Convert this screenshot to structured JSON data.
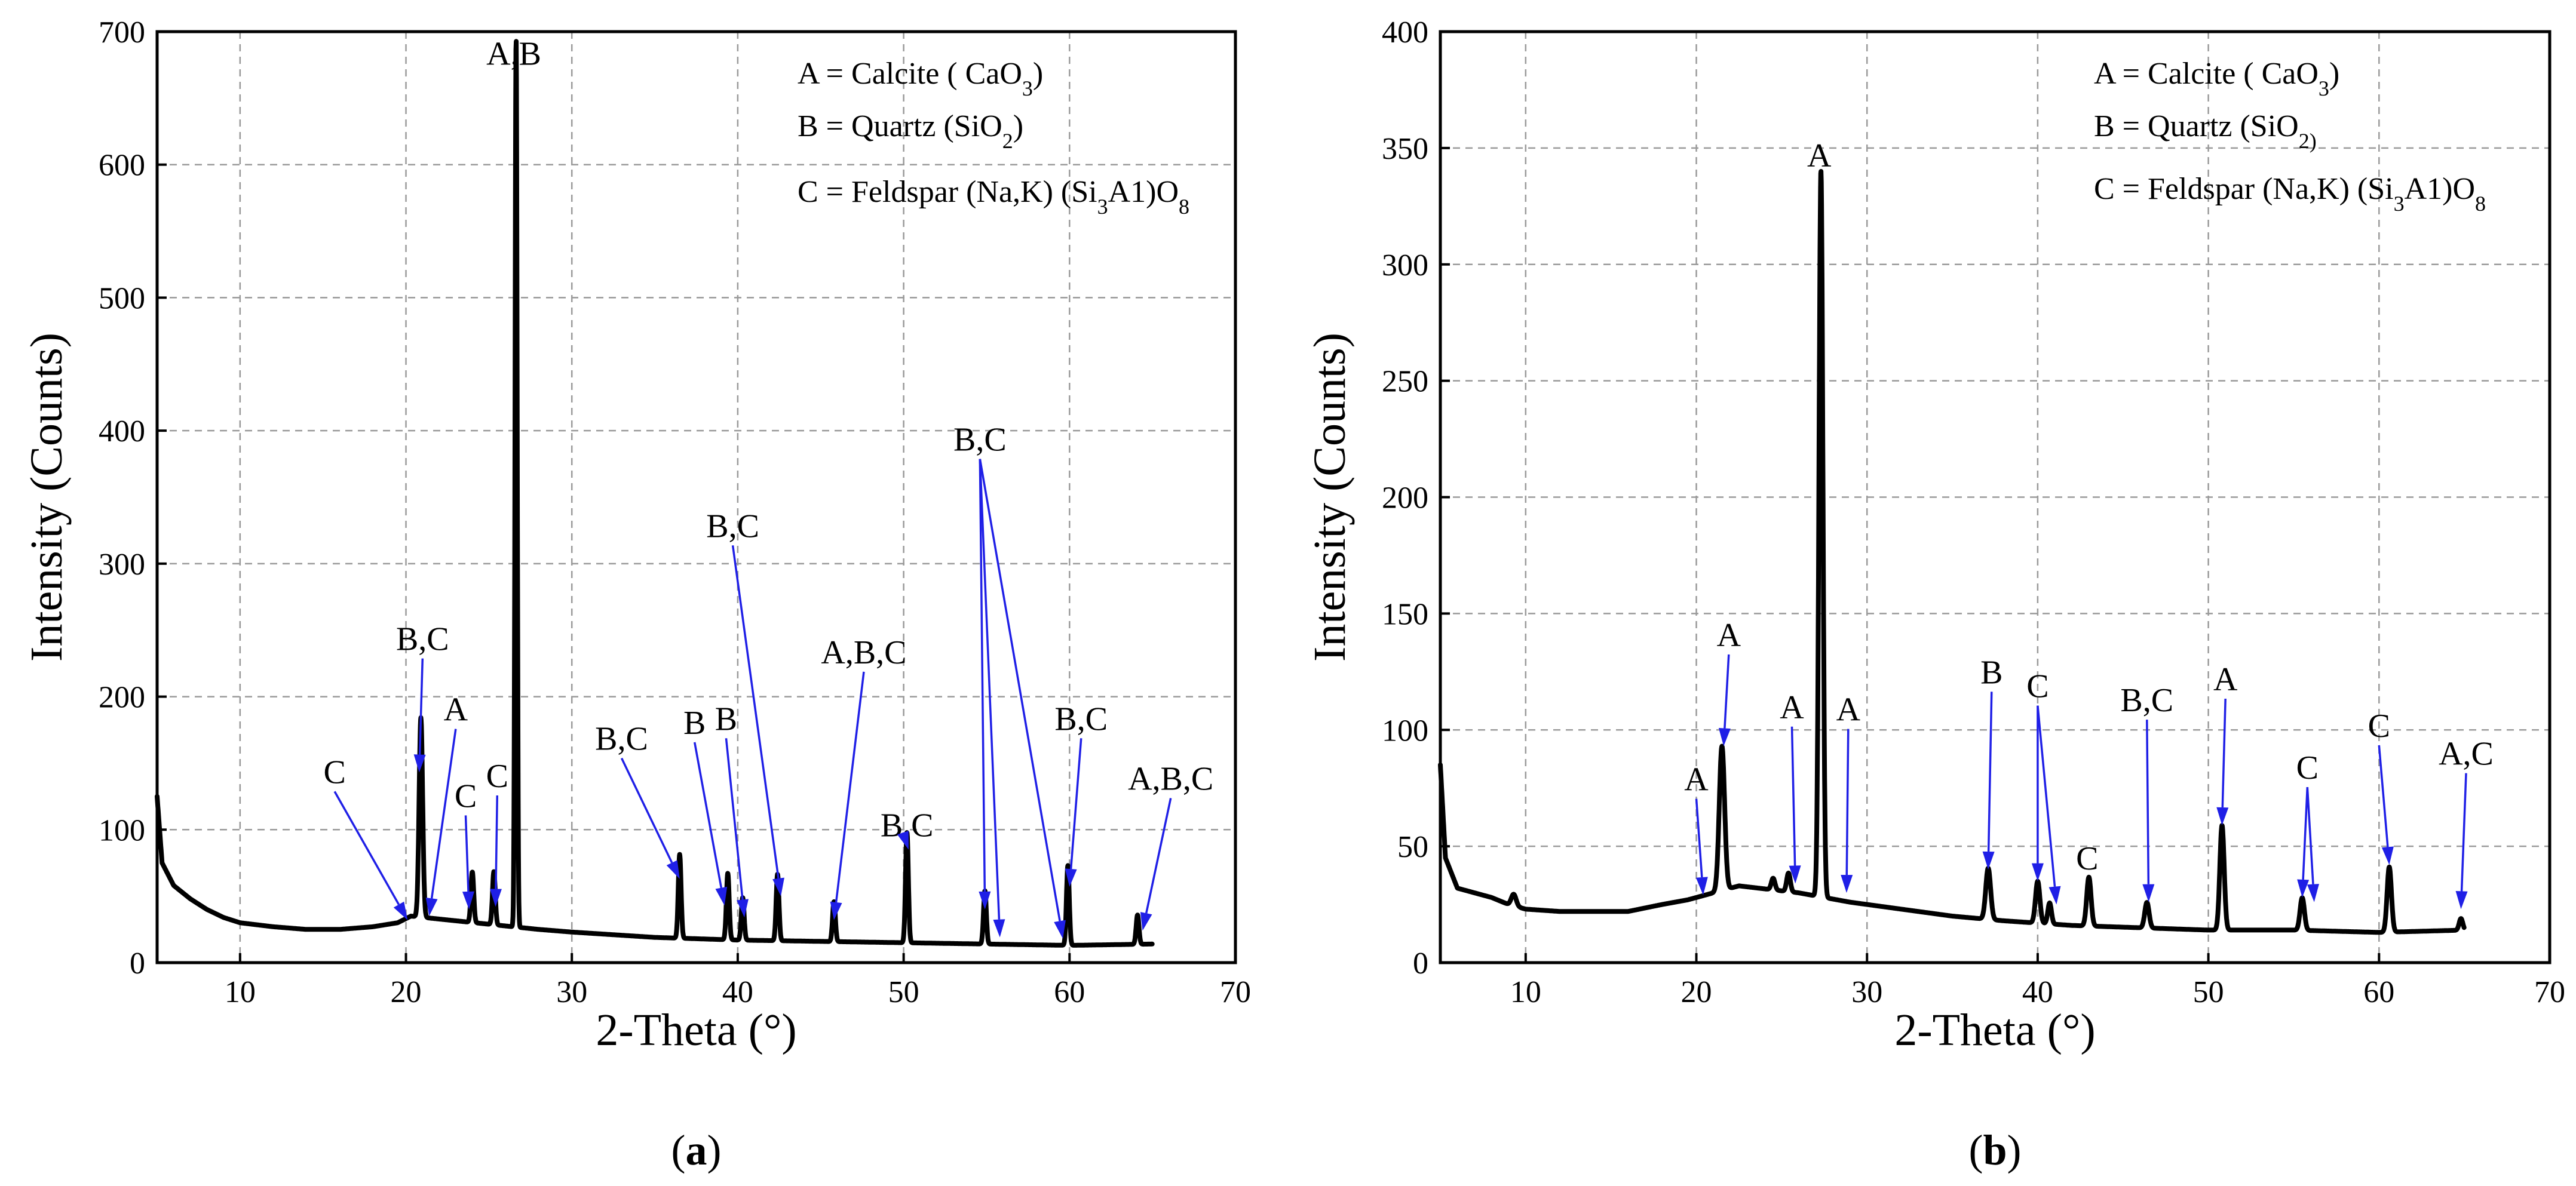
{
  "chart_data": [
    {
      "id": "a",
      "type": "line",
      "panel_label": "a",
      "xlabel": "2-Theta (°)",
      "ylabel": "Intensity (Counts)",
      "xlim": [
        5,
        70
      ],
      "ylim": [
        0,
        700
      ],
      "xticks": [
        10,
        20,
        30,
        40,
        50,
        60,
        70
      ],
      "yticks": [
        0,
        100,
        200,
        300,
        400,
        500,
        600,
        700
      ],
      "grid": true,
      "legend_position": "top-right",
      "legend": [
        {
          "lead": "A = Calcite ( CaO",
          "sub": "3",
          "tail": ")"
        },
        {
          "lead": "B = Quartz (SiO",
          "sub": "2",
          "tail": ")"
        },
        {
          "lead": "C = Feldspar (Na,K) (Si",
          "sub": "3",
          "mid": "A1)O",
          "sub2": "8"
        }
      ],
      "baseline": [
        [
          5,
          125
        ],
        [
          5.3,
          75
        ],
        [
          6,
          58
        ],
        [
          7,
          48
        ],
        [
          8,
          40
        ],
        [
          9,
          34
        ],
        [
          10,
          30
        ],
        [
          12,
          27
        ],
        [
          14,
          25
        ],
        [
          16,
          25
        ],
        [
          18,
          27
        ],
        [
          19.5,
          30
        ],
        [
          20.3,
          35
        ],
        [
          28,
          25
        ],
        [
          30,
          23
        ],
        [
          35,
          19
        ],
        [
          40,
          17
        ],
        [
          45,
          16
        ],
        [
          50,
          15
        ],
        [
          55,
          14
        ],
        [
          60,
          13
        ],
        [
          65,
          14
        ]
      ],
      "peaks": [
        {
          "x": 20.9,
          "y": 150,
          "w": 0.15
        },
        {
          "x": 24.0,
          "y": 38,
          "w": 0.12
        },
        {
          "x": 25.3,
          "y": 40,
          "w": 0.12
        },
        {
          "x": 26.64,
          "y": 668,
          "w": 0.09
        },
        {
          "x": 36.5,
          "y": 63,
          "w": 0.12
        },
        {
          "x": 39.4,
          "y": 50,
          "w": 0.12
        },
        {
          "x": 40.3,
          "y": 32,
          "w": 0.12
        },
        {
          "x": 42.4,
          "y": 50,
          "w": 0.12
        },
        {
          "x": 45.8,
          "y": 30,
          "w": 0.12
        },
        {
          "x": 50.2,
          "y": 83,
          "w": 0.12
        },
        {
          "x": 54.9,
          "y": 40,
          "w": 0.12
        },
        {
          "x": 59.9,
          "y": 60,
          "w": 0.12
        },
        {
          "x": 64.1,
          "y": 22,
          "w": 0.12
        }
      ],
      "annotations": [
        {
          "label": "A,B",
          "lx": 26.5,
          "ly": 675,
          "targets": []
        },
        {
          "label": "B,C",
          "lx": 21.0,
          "ly": 235,
          "targets": [
            [
              20.8,
              143
            ]
          ]
        },
        {
          "label": "A",
          "lx": 23.0,
          "ly": 182,
          "targets": [
            [
              21.4,
              35
            ]
          ]
        },
        {
          "label": "C",
          "lx": 23.6,
          "ly": 117,
          "targets": [
            [
              23.8,
              40
            ]
          ]
        },
        {
          "label": "C",
          "lx": 25.5,
          "ly": 132,
          "targets": [
            [
              25.4,
              42
            ]
          ]
        },
        {
          "label": "C",
          "lx": 15.7,
          "ly": 135,
          "targets": [
            [
              20.1,
              32
            ]
          ]
        },
        {
          "label": "B,C",
          "lx": 33.0,
          "ly": 160,
          "targets": [
            [
              36.5,
              63
            ]
          ]
        },
        {
          "label": "B",
          "lx": 37.4,
          "ly": 172,
          "targets": [
            [
              39.2,
              43
            ]
          ]
        },
        {
          "label": "B",
          "lx": 39.3,
          "ly": 175,
          "targets": [
            [
              40.4,
              34
            ]
          ]
        },
        {
          "label": "B,C",
          "lx": 39.7,
          "ly": 320,
          "targets": [
            [
              42.6,
              50
            ]
          ]
        },
        {
          "label": "A,B,C",
          "lx": 47.6,
          "ly": 225,
          "targets": [
            [
              45.8,
              32
            ]
          ]
        },
        {
          "label": "B,C",
          "lx": 50.2,
          "ly": 95,
          "targets": [
            [
              50.3,
              85
            ]
          ]
        },
        {
          "label": "B,C",
          "lx": 54.6,
          "ly": 385,
          "targets": [
            [
              54.9,
              40
            ],
            [
              55.8,
              19
            ],
            [
              59.6,
              18
            ]
          ]
        },
        {
          "label": "B,C",
          "lx": 60.7,
          "ly": 175,
          "targets": [
            [
              60.0,
              57
            ]
          ]
        },
        {
          "label": "A,B,C",
          "lx": 66.1,
          "ly": 130,
          "targets": [
            [
              64.4,
              24
            ]
          ]
        }
      ]
    },
    {
      "id": "b",
      "type": "line",
      "panel_label": "b",
      "xlabel": "2-Theta (°)",
      "ylabel": "Intensity (Counts)",
      "xlim": [
        5,
        70
      ],
      "ylim": [
        0,
        400
      ],
      "xticks": [
        10,
        20,
        30,
        40,
        50,
        60,
        70
      ],
      "yticks": [
        0,
        50,
        100,
        150,
        200,
        250,
        300,
        350,
        400
      ],
      "grid": true,
      "legend_position": "top-right",
      "legend": [
        {
          "lead": "A = Calcite ( CaO",
          "sub": "3",
          "tail": ")"
        },
        {
          "lead": "B = Quartz (SiO",
          "sub": "2)",
          "tail": ""
        },
        {
          "lead": "C = Feldspar (Na,K) (Si",
          "sub": "3",
          "mid": "A1)O",
          "sub2": "8"
        }
      ],
      "baseline": [
        [
          5,
          85
        ],
        [
          5.3,
          45
        ],
        [
          6,
          32
        ],
        [
          7,
          30
        ],
        [
          8,
          28
        ],
        [
          9,
          25
        ],
        [
          10,
          23
        ],
        [
          12,
          22
        ],
        [
          14,
          22
        ],
        [
          16,
          22
        ],
        [
          18,
          25
        ],
        [
          19.5,
          27
        ],
        [
          20.5,
          29
        ],
        [
          22.5,
          33
        ],
        [
          26,
          30
        ],
        [
          29,
          26
        ],
        [
          32,
          23
        ],
        [
          35,
          20
        ],
        [
          38,
          18
        ],
        [
          42,
          16
        ],
        [
          46,
          15
        ],
        [
          50,
          14
        ],
        [
          55,
          14
        ],
        [
          60,
          13
        ],
        [
          65,
          14
        ]
      ],
      "peaks": [
        {
          "x": 9.3,
          "y": 5,
          "w": 0.2
        },
        {
          "x": 21.5,
          "y": 62,
          "w": 0.22
        },
        {
          "x": 24.5,
          "y": 5,
          "w": 0.15
        },
        {
          "x": 25.4,
          "y": 8,
          "w": 0.15
        },
        {
          "x": 27.3,
          "y": 312,
          "w": 0.16
        },
        {
          "x": 37.1,
          "y": 22,
          "w": 0.2
        },
        {
          "x": 40.0,
          "y": 18,
          "w": 0.18
        },
        {
          "x": 40.7,
          "y": 9,
          "w": 0.15
        },
        {
          "x": 43.0,
          "y": 21,
          "w": 0.18
        },
        {
          "x": 46.4,
          "y": 11,
          "w": 0.18
        },
        {
          "x": 50.8,
          "y": 45,
          "w": 0.18
        },
        {
          "x": 55.5,
          "y": 14,
          "w": 0.18
        },
        {
          "x": 60.6,
          "y": 28,
          "w": 0.18
        },
        {
          "x": 64.8,
          "y": 5,
          "w": 0.15
        }
      ],
      "annotations": [
        {
          "label": "A",
          "lx": 27.2,
          "ly": 342,
          "targets": []
        },
        {
          "label": "A",
          "lx": 21.9,
          "ly": 136,
          "targets": [
            [
              21.6,
              93
            ]
          ]
        },
        {
          "label": "A",
          "lx": 20.0,
          "ly": 74,
          "targets": [
            [
              20.4,
              29
            ]
          ]
        },
        {
          "label": "A",
          "lx": 25.6,
          "ly": 105,
          "targets": [
            [
              25.8,
              34
            ]
          ]
        },
        {
          "label": "A",
          "lx": 28.9,
          "ly": 104,
          "targets": [
            [
              28.8,
              30
            ]
          ]
        },
        {
          "label": "B",
          "lx": 37.3,
          "ly": 120,
          "targets": [
            [
              37.1,
              40
            ]
          ]
        },
        {
          "label": "C",
          "lx": 40.0,
          "ly": 114,
          "targets": [
            [
              40.0,
              35
            ],
            [
              41.1,
              25
            ]
          ]
        },
        {
          "label": "C",
          "lx": 42.9,
          "ly": 40,
          "targets": []
        },
        {
          "label": "B,C",
          "lx": 46.4,
          "ly": 108,
          "targets": [
            [
              46.5,
              26
            ]
          ]
        },
        {
          "label": "A",
          "lx": 51.0,
          "ly": 117,
          "targets": [
            [
              50.8,
              59
            ]
          ]
        },
        {
          "label": "C",
          "lx": 55.8,
          "ly": 79,
          "targets": [
            [
              55.5,
              28
            ],
            [
              56.2,
              26
            ]
          ]
        },
        {
          "label": "C",
          "lx": 60.0,
          "ly": 97,
          "targets": [
            [
              60.6,
              42
            ]
          ]
        },
        {
          "label": "A,C",
          "lx": 65.1,
          "ly": 85,
          "targets": [
            [
              64.8,
              23
            ]
          ]
        }
      ]
    }
  ]
}
